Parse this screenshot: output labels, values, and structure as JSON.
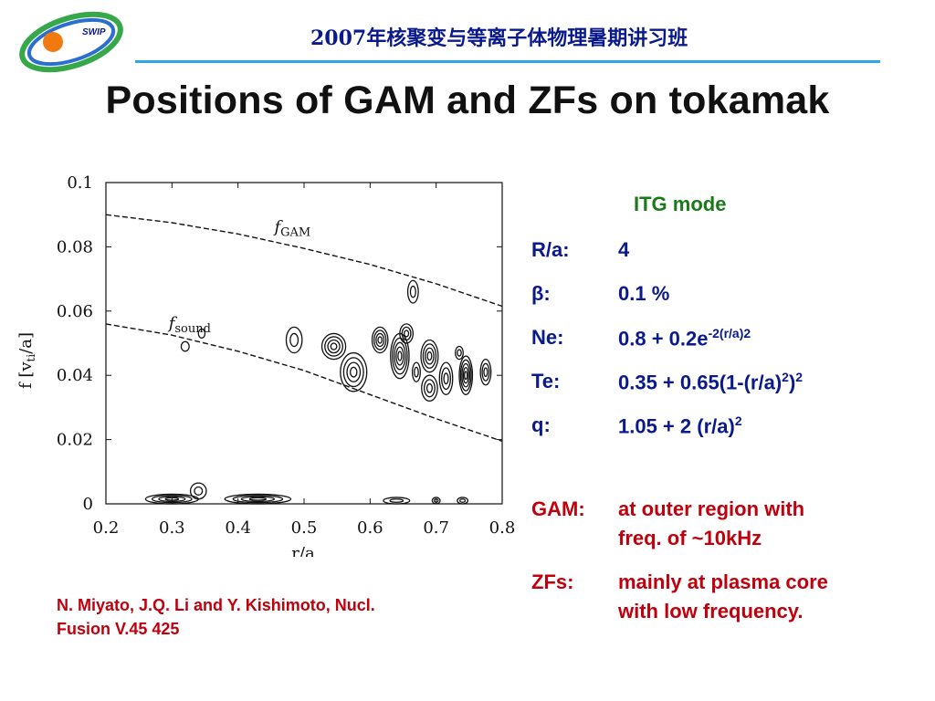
{
  "header": {
    "text": "2007年核聚变与等离子体物理暑期讲习班",
    "logo_text": "SWIP"
  },
  "title": "Positions of GAM and ZFs on tokamak",
  "chart_data": {
    "type": "contour",
    "xlabel": "r/a",
    "ylabel": "f [v",
    "ylabel_sub": "ti",
    "ylabel_tail": "/a]",
    "xlim": [
      0.2,
      0.8
    ],
    "ylim": [
      0,
      0.1
    ],
    "xticks": [
      "0.2",
      "0.3",
      "0.4",
      "0.5",
      "0.6",
      "0.7",
      "0.8"
    ],
    "yticks": [
      "0",
      "0.02",
      "0.04",
      "0.06",
      "0.08",
      "0.1"
    ],
    "xtick_values": [
      0.2,
      0.3,
      0.4,
      0.5,
      0.6,
      0.7,
      0.8
    ],
    "ytick_values": [
      0,
      0.02,
      0.04,
      0.06,
      0.08,
      0.1
    ],
    "curves": [
      {
        "name": "f",
        "sub": "GAM",
        "label_at": [
          0.455,
          0.0845
        ],
        "x": [
          0.2,
          0.3,
          0.4,
          0.5,
          0.6,
          0.7,
          0.8
        ],
        "y": [
          0.09,
          0.0875,
          0.084,
          0.0795,
          0.0745,
          0.0685,
          0.0615
        ]
      },
      {
        "name": "f",
        "sub": "sound",
        "label_at": [
          0.295,
          0.0545
        ],
        "x": [
          0.2,
          0.3,
          0.4,
          0.5,
          0.6,
          0.7,
          0.8
        ],
        "y": [
          0.056,
          0.0525,
          0.0475,
          0.0415,
          0.034,
          0.0265,
          0.0195
        ]
      }
    ],
    "contour_blobs": [
      {
        "x": 0.3,
        "y": 0.0015,
        "rx": 0.04,
        "ry": 0.0015,
        "rings": 4
      },
      {
        "x": 0.34,
        "y": 0.004,
        "rx": 0.012,
        "ry": 0.0025,
        "rings": 2
      },
      {
        "x": 0.43,
        "y": 0.0015,
        "rx": 0.05,
        "ry": 0.0015,
        "rings": 4
      },
      {
        "x": 0.64,
        "y": 0.001,
        "rx": 0.02,
        "ry": 0.001,
        "rings": 2
      },
      {
        "x": 0.7,
        "y": 0.001,
        "rx": 0.006,
        "ry": 0.001,
        "rings": 2
      },
      {
        "x": 0.74,
        "y": 0.001,
        "rx": 0.008,
        "ry": 0.001,
        "rings": 2
      },
      {
        "x": 0.345,
        "y": 0.053,
        "rx": 0.005,
        "ry": 0.0014,
        "rings": 1
      },
      {
        "x": 0.32,
        "y": 0.049,
        "rx": 0.006,
        "ry": 0.0015,
        "rings": 1
      },
      {
        "x": 0.485,
        "y": 0.051,
        "rx": 0.012,
        "ry": 0.004,
        "rings": 2
      },
      {
        "x": 0.545,
        "y": 0.049,
        "rx": 0.018,
        "ry": 0.004,
        "rings": 4
      },
      {
        "x": 0.575,
        "y": 0.041,
        "rx": 0.02,
        "ry": 0.006,
        "rings": 4
      },
      {
        "x": 0.615,
        "y": 0.051,
        "rx": 0.012,
        "ry": 0.004,
        "rings": 4
      },
      {
        "x": 0.645,
        "y": 0.046,
        "rx": 0.014,
        "ry": 0.007,
        "rings": 5
      },
      {
        "x": 0.655,
        "y": 0.053,
        "rx": 0.01,
        "ry": 0.003,
        "rings": 3
      },
      {
        "x": 0.69,
        "y": 0.046,
        "rx": 0.013,
        "ry": 0.005,
        "rings": 4
      },
      {
        "x": 0.69,
        "y": 0.036,
        "rx": 0.012,
        "ry": 0.004,
        "rings": 3
      },
      {
        "x": 0.665,
        "y": 0.066,
        "rx": 0.008,
        "ry": 0.0035,
        "rings": 2
      },
      {
        "x": 0.715,
        "y": 0.039,
        "rx": 0.01,
        "ry": 0.005,
        "rings": 3
      },
      {
        "x": 0.745,
        "y": 0.04,
        "rx": 0.01,
        "ry": 0.006,
        "rings": 5
      },
      {
        "x": 0.775,
        "y": 0.041,
        "rx": 0.008,
        "ry": 0.004,
        "rings": 3
      },
      {
        "x": 0.735,
        "y": 0.047,
        "rx": 0.006,
        "ry": 0.002,
        "rings": 2
      },
      {
        "x": 0.67,
        "y": 0.041,
        "rx": 0.006,
        "ry": 0.003,
        "rings": 2
      }
    ]
  },
  "params": {
    "mode_title": "ITG mode",
    "rows": [
      {
        "label": "R/a:",
        "value": "4"
      },
      {
        "label": "β:",
        "value": "0.1 %"
      },
      {
        "label": "Ne:",
        "value_base": "0.8 + 0.2e",
        "value_sup": "-2(r/a)2"
      },
      {
        "label": "Te:",
        "value_a": "0.35 + 0.65(1-(r/a)",
        "sup1": "2",
        "value_b": ")",
        "sup2": "2"
      },
      {
        "label": "q:",
        "value_a": "1.05 + 2 (r/a)",
        "sup1": "2"
      }
    ],
    "gam_label": "GAM:",
    "gam_line1": "at outer region with",
    "gam_line2": "freq. of ~10kHz",
    "zfs_label": "ZFs:",
    "zfs_line1": "mainly at plasma core",
    "zfs_line2": "with low frequency."
  },
  "citation": {
    "line1": "N. Miyato, J.Q. Li and Y. Kishimoto, Nucl.",
    "line2": "Fusion V.45 425"
  },
  "colors": {
    "navy": "#0a1a8c",
    "green": "#1a7a1a",
    "red": "#c0000c",
    "accent_line": "#2fa6e6"
  }
}
